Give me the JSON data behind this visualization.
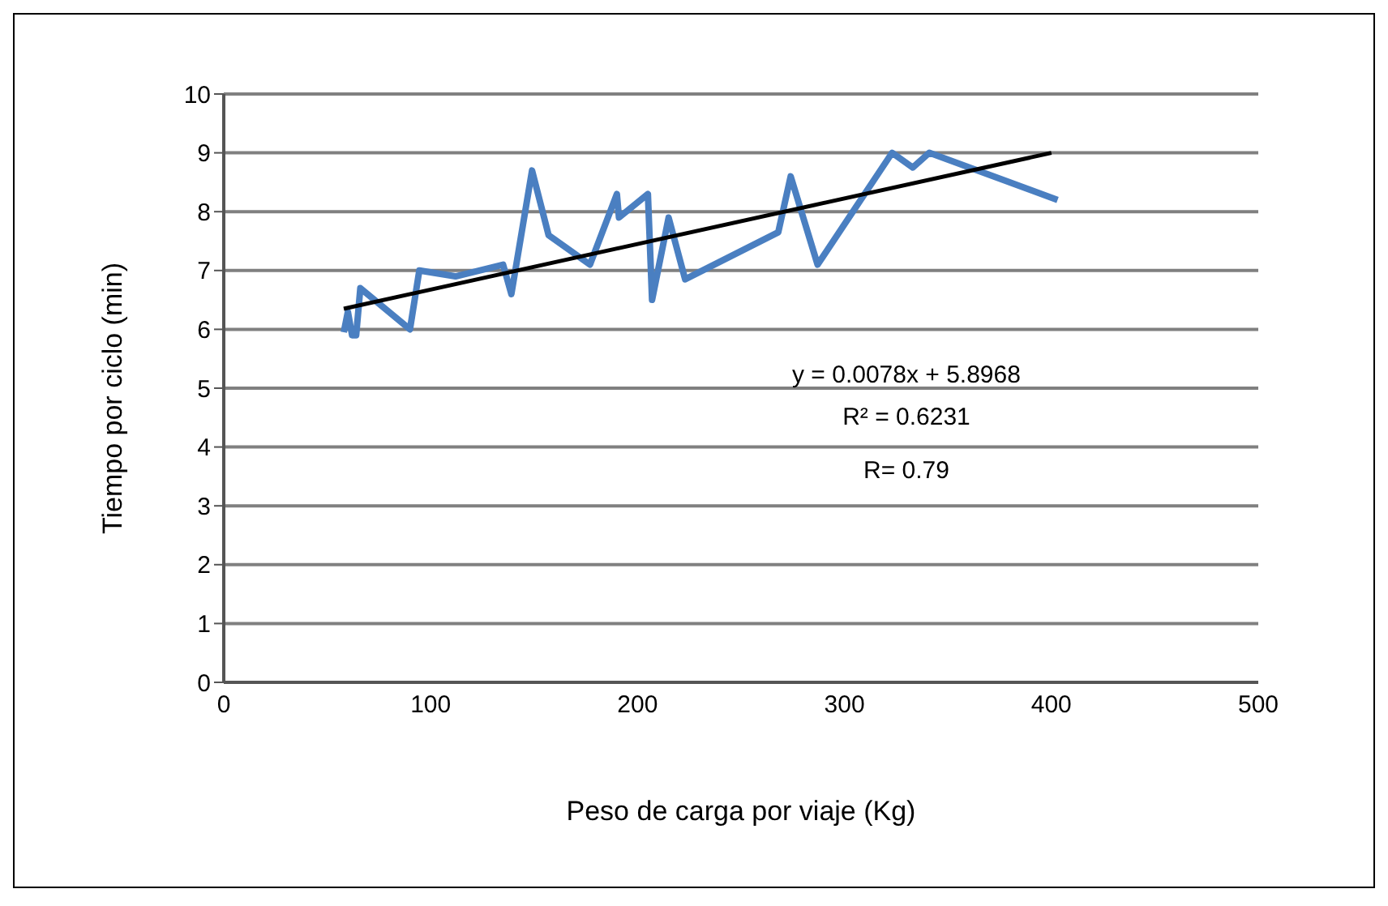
{
  "chart_data": {
    "type": "line",
    "xlabel": "Peso de carga por viaje (Kg)",
    "ylabel": "Tiempo por ciclo (min)",
    "xlim": [
      0,
      500
    ],
    "xticks": [
      0,
      100,
      200,
      300,
      400,
      500
    ],
    "ylim": [
      0,
      10
    ],
    "yticks": [
      0,
      1,
      2,
      3,
      4,
      5,
      6,
      7,
      8,
      9,
      10
    ],
    "grid": "y",
    "marker": "none",
    "series": [
      {
        "color": "#4a7fc1",
        "x": [
          58,
          60,
          62,
          64,
          66,
          90,
          94.5,
          112,
          135,
          139,
          149,
          157,
          177,
          190,
          191,
          205,
          207,
          215,
          223,
          268,
          274,
          287,
          323,
          333,
          341,
          403
        ],
        "values": [
          5.95,
          6.3,
          5.9,
          5.9,
          6.7,
          6.0,
          7.0,
          6.9,
          7.1,
          6.6,
          8.7,
          7.6,
          7.1,
          8.3,
          7.9,
          8.3,
          6.5,
          7.9,
          6.85,
          7.65,
          8.6,
          7.1,
          9.0,
          8.75,
          9.0,
          8.2
        ]
      },
      {
        "type": "line",
        "color": "#000000",
        "x": [
          58,
          400
        ],
        "values": [
          6.35,
          9.0
        ]
      }
    ],
    "annotations": [
      "y = 0.0078x + 5.8968",
      "R² = 0.6231",
      "R= 0.79"
    ]
  }
}
